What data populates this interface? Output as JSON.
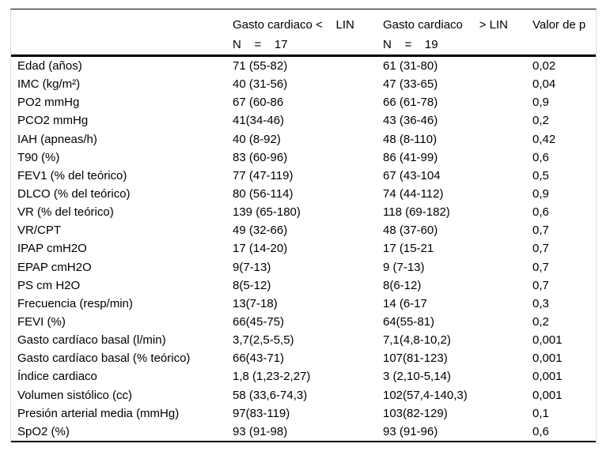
{
  "table": {
    "header": {
      "group1_line1": "Gasto cardiaco <    LIN",
      "group1_line2": "N    =    17",
      "group2_line1": "Gasto cardiaco     > LIN",
      "group2_line2": "N    =    19",
      "pvalue_label": "Valor de p"
    },
    "rows": [
      {
        "label": "Edad (años)",
        "group1": "71 (55-82)",
        "group2": "61 (31-80)",
        "p": "0,02"
      },
      {
        "label": "IMC (kg/m²)",
        "group1": "40 (31-56)",
        "group2": "47 (33-65)",
        "p": "0,04"
      },
      {
        "label": "PO2 mmHg",
        "group1": "67 (60-86",
        "group2": "66 (61-78)",
        "p": "0,9"
      },
      {
        "label": "PCO2 mmHg",
        "group1": "41(34-46)",
        "group2": "43 (36-46)",
        "p": "0,2"
      },
      {
        "label": "IAH (apneas/h)",
        "group1": "40 (8-92)",
        "group2": "48 (8-110)",
        "p": "0,42"
      },
      {
        "label": "T90 (%)",
        "group1": "83 (60-96)",
        "group2": "86 (41-99)",
        "p": "0,6"
      },
      {
        "label": "FEV1 (% del teórico)",
        "group1": "77 (47-119)",
        "group2": "67 (43-104",
        "p": "0,5"
      },
      {
        "label": "DLCO (% del teórico)",
        "group1": "80 (56-114)",
        "group2": "74 (44-112)",
        "p": "0,9"
      },
      {
        "label": "VR (% del teórico)",
        "group1": "139 (65-180)",
        "group2": "118 (69-182)",
        "p": "0,6"
      },
      {
        "label": "VR/CPT",
        "group1": "49 (32-66)",
        "group2": "48 (37-60)",
        "p": "0,7"
      },
      {
        "label": "IPAP cmH2O",
        "group1": "17 (14-20)",
        "group2": "17 (15-21",
        "p": "0,7"
      },
      {
        "label": "EPAP cmH2O",
        "group1": "9(7-13)",
        "group2": "9 (7-13)",
        "p": "0,7"
      },
      {
        "label": "PS cm H2O",
        "group1": "8(5-12)",
        "group2": "8(6-12)",
        "p": "0,7"
      },
      {
        "label": "Frecuencia (resp/min)",
        "group1": "13(7-18)",
        "group2": "14 (6-17",
        "p": "0,3"
      },
      {
        "label": "FEVI (%)",
        "group1": "66(45-75)",
        "group2": "64(55-81)",
        "p": "0,2"
      },
      {
        "label": "Gasto cardíaco basal (l/min)",
        "group1": "3,7(2,5-5,5)",
        "group2": "7,1(4,8-10,2)",
        "p": "0,001"
      },
      {
        "label": "Gasto cardíaco basal (% teórico)",
        "group1": "66(43-71)",
        "group2": "107(81-123)",
        "p": "0,001"
      },
      {
        "label": "Índice cardiaco",
        "group1": "1,8 (1,23-2,27)",
        "group2": "3 (2,10-5,14)",
        "p": "0,001"
      },
      {
        "label": "Volumen sistólico (cc)",
        "group1": "58 (33,6-74,3)",
        "group2": "102(57,4-140,3)",
        "p": "0,001"
      },
      {
        "label": "Presión arterial media (mmHg)",
        "group1": "97(83-119)",
        "group2": "103(82-129)",
        "p": "0,1"
      },
      {
        "label": "SpO2 (%)",
        "group1": "93 (91-98)",
        "group2": "93 (91-96)",
        "p": "0,6"
      }
    ]
  }
}
